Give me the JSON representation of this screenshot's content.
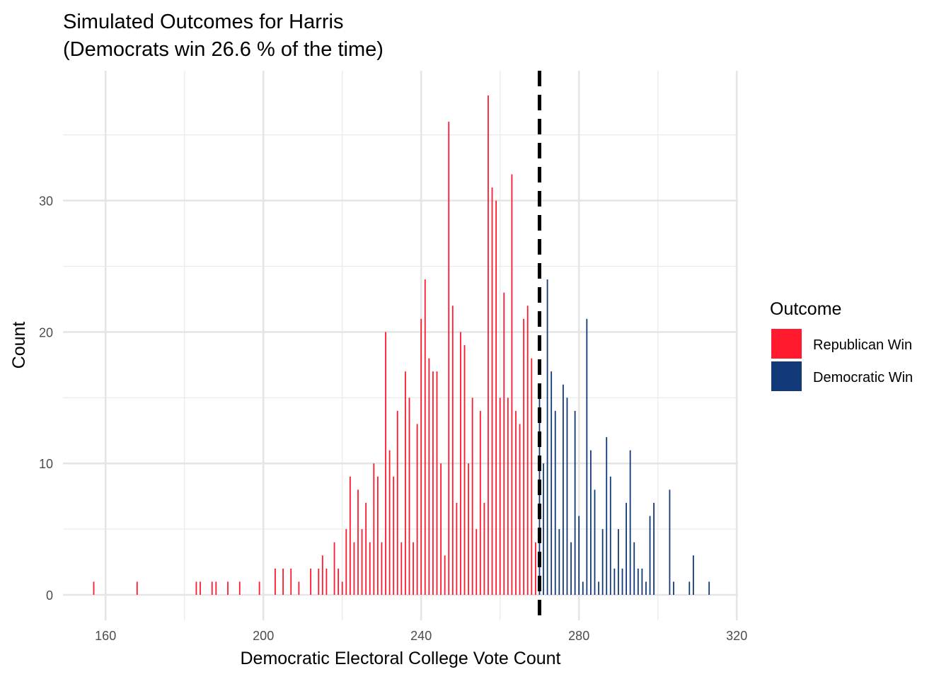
{
  "chart_data": {
    "type": "bar",
    "title_line1": "Simulated Outcomes for Harris",
    "title_line2": "(Democrats win 26.6 % of the time)",
    "xlabel": "Democratic Electoral College Vote Count",
    "ylabel": "Count",
    "xlim": [
      150,
      320
    ],
    "ylim": [
      -1.5,
      40
    ],
    "x_ticks": [
      160,
      200,
      240,
      280,
      320
    ],
    "y_ticks": [
      0,
      10,
      20,
      30
    ],
    "threshold": 270,
    "legend": {
      "title": "Outcome",
      "placement": "right",
      "entries": [
        {
          "label": "Republican Win",
          "color": "#ff1a2e"
        },
        {
          "label": "Democratic Win",
          "color": "#123a78"
        }
      ]
    },
    "series": [
      {
        "name": "Republican Win",
        "color": "#ff1a2e",
        "x": [
          157,
          168,
          183,
          184,
          187,
          188,
          191,
          194,
          199,
          203,
          205,
          207,
          209,
          212,
          214,
          215,
          216,
          218,
          219,
          220,
          221,
          222,
          223,
          224,
          225,
          226,
          227,
          228,
          229,
          230,
          231,
          232,
          233,
          234,
          235,
          236,
          237,
          238,
          239,
          240,
          241,
          242,
          243,
          244,
          245,
          246,
          247,
          248,
          249,
          250,
          251,
          252,
          253,
          254,
          255,
          256,
          257,
          258,
          259,
          260,
          261,
          262,
          263,
          264,
          265,
          266,
          267,
          268,
          269
        ],
        "values": [
          1,
          1,
          1,
          1,
          1,
          1,
          1,
          1,
          1,
          2,
          2,
          2,
          1,
          2,
          2,
          3,
          2,
          4,
          2,
          1,
          5,
          9,
          4,
          8,
          5,
          7,
          4,
          10,
          9,
          4,
          20,
          11,
          9,
          14,
          4,
          17,
          15,
          4,
          13,
          21,
          24,
          18,
          17,
          17,
          10,
          3,
          36,
          22,
          7,
          20,
          19,
          10,
          15,
          5,
          14,
          7,
          38,
          31,
          30,
          15,
          23,
          15,
          32,
          14,
          13,
          21,
          22,
          18,
          4
        ]
      },
      {
        "name": "Democratic Win",
        "color": "#123a78",
        "x": [
          270,
          271,
          272,
          273,
          274,
          275,
          276,
          277,
          278,
          279,
          280,
          281,
          282,
          283,
          284,
          285,
          286,
          287,
          288,
          289,
          290,
          291,
          292,
          293,
          294,
          295,
          296,
          297,
          298,
          299,
          303,
          304,
          308,
          309,
          313
        ],
        "values": [
          15,
          10,
          24,
          17,
          14,
          5,
          16,
          15,
          4,
          14,
          6,
          1,
          21,
          11,
          8,
          1,
          5,
          12,
          9,
          2,
          5,
          2,
          7,
          11,
          4,
          2,
          2,
          1,
          6,
          7,
          8,
          1,
          1,
          3,
          1
        ]
      }
    ]
  }
}
